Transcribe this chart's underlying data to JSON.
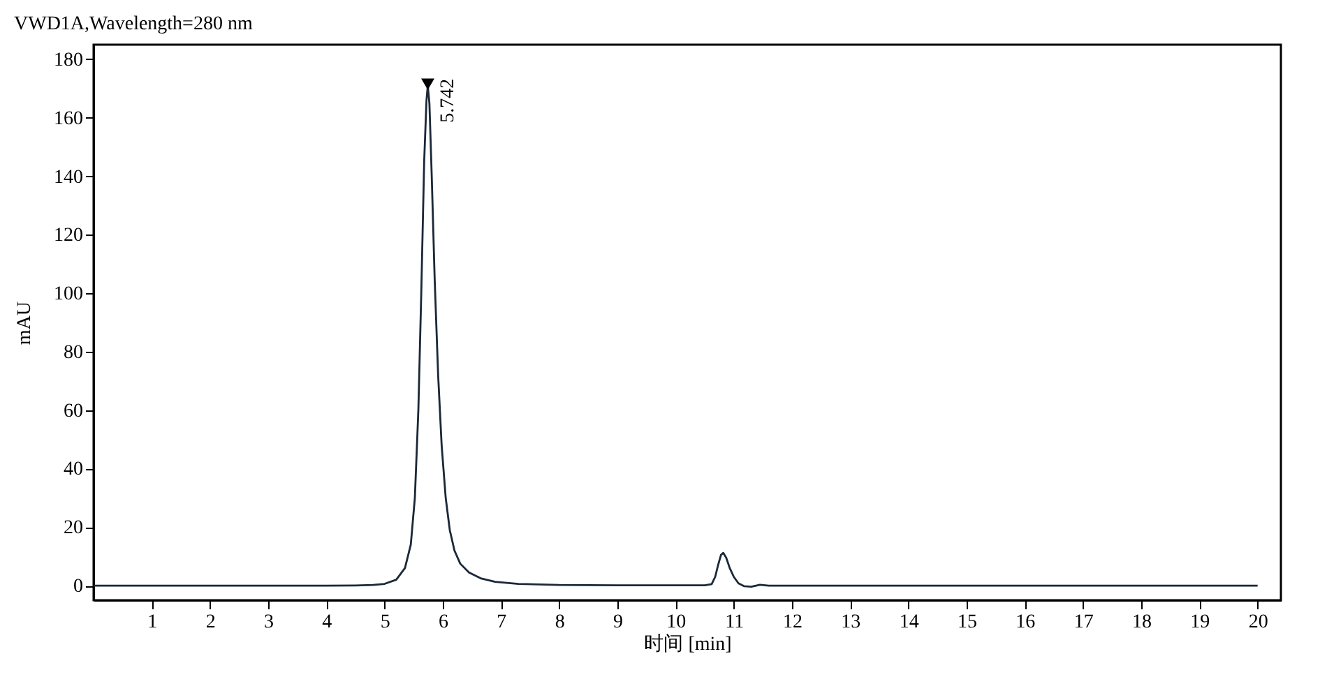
{
  "chart_data": {
    "type": "line",
    "title": "VWD1A,Wavelength=280 nm",
    "xlabel": "时间 [min]",
    "ylabel": "mAU",
    "x": [
      0,
      1,
      2,
      3,
      4,
      4.5,
      4.8,
      5.0,
      5.2,
      5.35,
      5.45,
      5.52,
      5.58,
      5.63,
      5.68,
      5.72,
      5.742,
      5.77,
      5.81,
      5.86,
      5.92,
      5.98,
      6.05,
      6.12,
      6.2,
      6.3,
      6.45,
      6.65,
      6.9,
      7.3,
      8,
      9,
      10,
      10.5,
      10.62,
      10.68,
      10.73,
      10.78,
      10.82,
      10.87,
      10.93,
      11.0,
      11.08,
      11.18,
      11.3,
      11.45,
      11.6,
      12,
      13,
      14,
      16,
      18,
      20
    ],
    "series": [
      {
        "color": "#1b2838",
        "values": [
          0,
          0,
          0,
          0,
          0,
          0.05,
          0.2,
          0.6,
          2,
          6,
          14,
          30,
          60,
          100,
          145,
          166,
          171,
          165,
          140,
          105,
          72,
          48,
          30,
          19,
          12,
          7.5,
          4.5,
          2.5,
          1.3,
          0.6,
          0.2,
          0.1,
          0.1,
          0.1,
          0.5,
          3,
          7,
          10.5,
          11.2,
          9.5,
          6,
          3,
          0.8,
          -0.2,
          -0.4,
          0.3,
          0,
          0,
          0,
          0,
          0,
          0,
          0
        ]
      }
    ],
    "xlim": [
      0,
      20.4
    ],
    "ylim": [
      -5,
      185
    ],
    "xticks": [
      1,
      2,
      3,
      4,
      5,
      6,
      7,
      8,
      9,
      10,
      11,
      12,
      13,
      14,
      15,
      16,
      17,
      18,
      19,
      20
    ],
    "yticks": [
      0,
      20,
      40,
      60,
      80,
      100,
      120,
      140,
      160,
      180
    ],
    "grid": false,
    "legend": false,
    "marker": "none",
    "line_style": "solid",
    "annotations": [
      {
        "text": "5.742",
        "x": 5.742,
        "y": 171
      }
    ]
  }
}
